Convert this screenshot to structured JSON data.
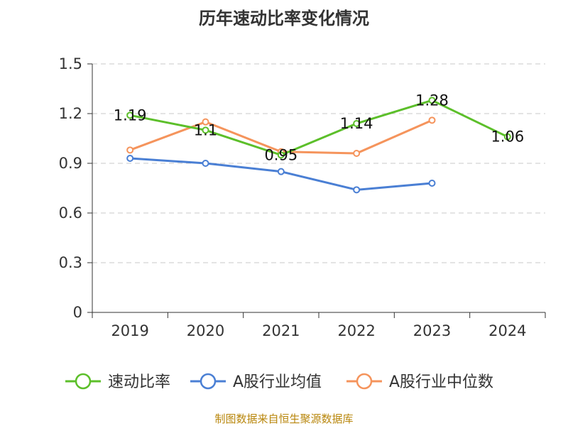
{
  "chart_data": {
    "type": "line",
    "title": "历年速动比率变化情况",
    "categories": [
      "2019",
      "2020",
      "2021",
      "2022",
      "2023",
      "2024"
    ],
    "ylim": [
      0,
      1.5
    ],
    "yticks": [
      "0",
      "0.3",
      "0.6",
      "0.9",
      "1.2",
      "1.5"
    ],
    "ytick_values": [
      0,
      0.3,
      0.6,
      0.9,
      1.2,
      1.5
    ],
    "grid": true,
    "legend_position": "bottom",
    "series": [
      {
        "name": "速动比率",
        "color": "#5cbf2a",
        "values": [
          1.19,
          1.1,
          0.95,
          1.14,
          1.28,
          1.06
        ],
        "labels": [
          "1.19",
          "1.1",
          "0.95",
          "1.14",
          "1.28",
          "1.06"
        ]
      },
      {
        "name": "A股行业均值",
        "color": "#4a7fd4",
        "values": [
          0.93,
          0.9,
          0.85,
          0.74,
          0.78,
          null
        ]
      },
      {
        "name": "A股行业中位数",
        "color": "#f5945c",
        "values": [
          0.98,
          1.15,
          0.97,
          0.96,
          1.16,
          null
        ]
      }
    ]
  },
  "source": "制图数据来自恒生聚源数据库"
}
